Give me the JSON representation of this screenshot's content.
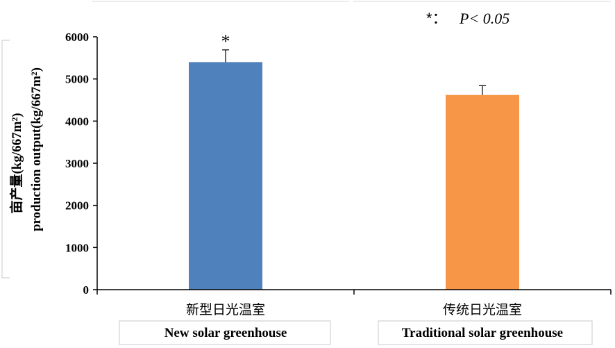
{
  "chart_data": {
    "type": "bar",
    "categories": [
      {
        "cn": "新型日光温室",
        "en": "New solar greenhouse"
      },
      {
        "cn": "传统日光温室",
        "en": "Traditional solar greenhouse"
      }
    ],
    "values": [
      5400,
      4620
    ],
    "errors": [
      290,
      220
    ],
    "colors": [
      "#4f81bd",
      "#f79646"
    ],
    "significance": [
      "*",
      ""
    ],
    "ylabel_cn": "亩产量(kg/667m²)",
    "ylabel_en": "production output(kg/667m²)",
    "ylim": [
      0,
      6000
    ],
    "yticks": [
      0,
      1000,
      2000,
      3000,
      4000,
      5000,
      6000
    ],
    "note_symbol": "*：",
    "note_text": "P< 0.05"
  }
}
